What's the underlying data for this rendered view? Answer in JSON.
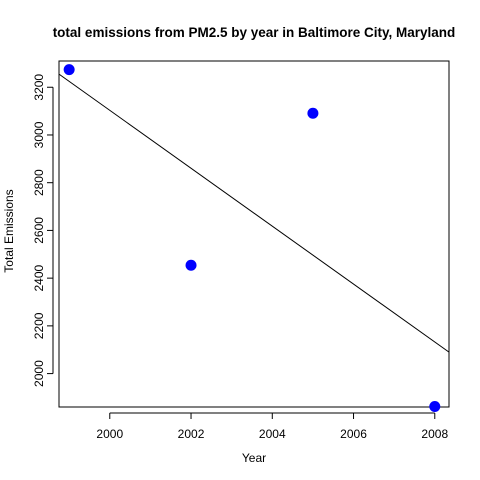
{
  "chart_data": {
    "type": "scatter",
    "title": "total emissions from PM2.5 by year in Baltimore City, Maryland",
    "xlabel": "Year",
    "ylabel": "Total Emissions",
    "xlim": [
      1998.75,
      2008.35
    ],
    "ylim": [
      1860,
      3310
    ],
    "x_ticks": [
      2000,
      2002,
      2004,
      2006,
      2008
    ],
    "y_ticks": [
      2000,
      2200,
      2400,
      2600,
      2800,
      3000,
      3200
    ],
    "x_tick_labels": [
      "2000",
      "2002",
      "2004",
      "2006",
      "2008"
    ],
    "y_tick_labels": [
      "2000",
      "2200",
      "2400",
      "2600",
      "2800",
      "3000",
      "3200"
    ],
    "grid": false,
    "point_color": "#0000ff",
    "line_color": "#000000",
    "points": [
      {
        "x": 1999,
        "y": 3274
      },
      {
        "x": 2002,
        "y": 2454
      },
      {
        "x": 2005,
        "y": 3091
      },
      {
        "x": 2008,
        "y": 1862
      }
    ],
    "regression_line": {
      "x": [
        1998.75,
        2008.35
      ],
      "y": [
        3255,
        2090
      ]
    }
  }
}
